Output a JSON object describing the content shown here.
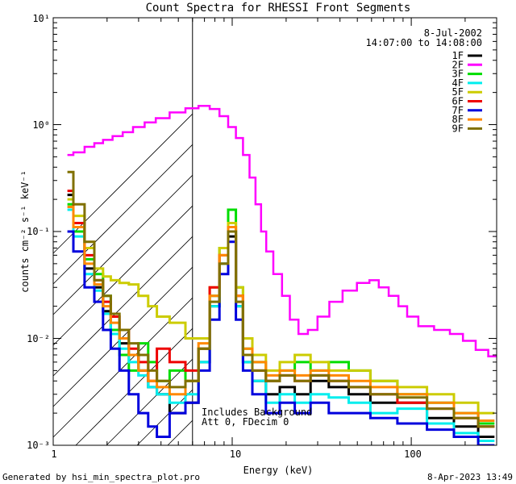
{
  "chart_data": {
    "type": "line",
    "title": "Count Spectra for RHESSI Front Segments",
    "xlabel": "Energy (keV)",
    "ylabel": "counts cm⁻² s⁻¹ keV⁻¹",
    "xscale": "log",
    "yscale": "log",
    "xlim": [
      1,
      300
    ],
    "ylim": [
      0.001,
      10
    ],
    "x_tick_labels": [
      "1",
      "10",
      "100"
    ],
    "y_tick_labels": [
      "10⁻³",
      "10⁻²",
      "10⁻¹",
      "10⁰",
      "10¹"
    ],
    "date_label": "8-Jul-2002",
    "time_range_label": "14:07:00 to 14:08:00",
    "annotation_lines": [
      "Includes Background",
      "Att 0, FDecim 0"
    ],
    "shaded_region_xlim": [
      1,
      6
    ],
    "legend_position": "top-right",
    "series": [
      {
        "name": "1F",
        "color": "#000000",
        "points": [
          [
            1.2,
            0.22
          ],
          [
            1.4,
            0.12
          ],
          [
            1.6,
            0.045
          ],
          [
            1.8,
            0.03
          ],
          [
            2.0,
            0.018
          ],
          [
            2.2,
            0.012
          ],
          [
            2.5,
            0.009
          ],
          [
            2.8,
            0.007
          ],
          [
            3.2,
            0.005
          ],
          [
            3.6,
            0.0035
          ],
          [
            4.0,
            0.003
          ],
          [
            5.0,
            0.002
          ],
          [
            6.0,
            0.0025
          ],
          [
            7.0,
            0.006
          ],
          [
            8.0,
            0.02
          ],
          [
            9.0,
            0.05
          ],
          [
            10.0,
            0.09
          ],
          [
            11.0,
            0.02
          ],
          [
            12.0,
            0.006
          ],
          [
            14.0,
            0.004
          ],
          [
            17.0,
            0.003
          ],
          [
            20.0,
            0.0035
          ],
          [
            25.0,
            0.003
          ],
          [
            30.0,
            0.004
          ],
          [
            40.0,
            0.0035
          ],
          [
            50.0,
            0.003
          ],
          [
            70.0,
            0.0025
          ],
          [
            100.0,
            0.0025
          ],
          [
            150.0,
            0.0018
          ],
          [
            200.0,
            0.0015
          ],
          [
            280.0,
            0.0012
          ]
        ]
      },
      {
        "name": "2F",
        "color": "#ff00ff",
        "points": [
          [
            1.2,
            0.52
          ],
          [
            1.4,
            0.55
          ],
          [
            1.6,
            0.62
          ],
          [
            1.8,
            0.67
          ],
          [
            2.0,
            0.72
          ],
          [
            2.3,
            0.78
          ],
          [
            2.6,
            0.85
          ],
          [
            3.0,
            0.95
          ],
          [
            3.5,
            1.05
          ],
          [
            4.0,
            1.15
          ],
          [
            5.0,
            1.3
          ],
          [
            6.0,
            1.42
          ],
          [
            7.0,
            1.5
          ],
          [
            8.0,
            1.4
          ],
          [
            9.0,
            1.2
          ],
          [
            10.0,
            0.95
          ],
          [
            11.0,
            0.75
          ],
          [
            12.0,
            0.52
          ],
          [
            13.0,
            0.32
          ],
          [
            14.0,
            0.18
          ],
          [
            15.0,
            0.1
          ],
          [
            16.0,
            0.065
          ],
          [
            18.0,
            0.04
          ],
          [
            20.0,
            0.025
          ],
          [
            22.0,
            0.015
          ],
          [
            25.0,
            0.011
          ],
          [
            28.0,
            0.012
          ],
          [
            32.0,
            0.016
          ],
          [
            38.0,
            0.022
          ],
          [
            45.0,
            0.028
          ],
          [
            55.0,
            0.033
          ],
          [
            62.0,
            0.035
          ],
          [
            70.0,
            0.03
          ],
          [
            80.0,
            0.025
          ],
          [
            90.0,
            0.02
          ],
          [
            100.0,
            0.016
          ],
          [
            120.0,
            0.013
          ],
          [
            150.0,
            0.012
          ],
          [
            180.0,
            0.011
          ],
          [
            210.0,
            0.0095
          ],
          [
            250.0,
            0.0078
          ],
          [
            290.0,
            0.0068
          ]
        ]
      },
      {
        "name": "3F",
        "color": "#00dd00",
        "points": [
          [
            1.2,
            0.18
          ],
          [
            1.4,
            0.1
          ],
          [
            1.6,
            0.055
          ],
          [
            1.8,
            0.04
          ],
          [
            2.0,
            0.025
          ],
          [
            2.2,
            0.012
          ],
          [
            2.5,
            0.007
          ],
          [
            2.8,
            0.005
          ],
          [
            3.2,
            0.009
          ],
          [
            3.6,
            0.006
          ],
          [
            4.0,
            0.004
          ],
          [
            5.0,
            0.005
          ],
          [
            6.0,
            0.004
          ],
          [
            7.0,
            0.008
          ],
          [
            8.0,
            0.025
          ],
          [
            9.0,
            0.07
          ],
          [
            10.0,
            0.16
          ],
          [
            11.0,
            0.03
          ],
          [
            12.0,
            0.008
          ],
          [
            14.0,
            0.006
          ],
          [
            17.0,
            0.004
          ],
          [
            20.0,
            0.005
          ],
          [
            25.0,
            0.006
          ],
          [
            30.0,
            0.005
          ],
          [
            40.0,
            0.006
          ],
          [
            50.0,
            0.005
          ],
          [
            70.0,
            0.004
          ],
          [
            100.0,
            0.003
          ],
          [
            150.0,
            0.0025
          ],
          [
            200.0,
            0.002
          ],
          [
            280.0,
            0.0016
          ]
        ]
      },
      {
        "name": "4F",
        "color": "#00eeee",
        "points": [
          [
            1.2,
            0.16
          ],
          [
            1.4,
            0.09
          ],
          [
            1.6,
            0.04
          ],
          [
            1.8,
            0.028
          ],
          [
            2.0,
            0.017
          ],
          [
            2.2,
            0.011
          ],
          [
            2.5,
            0.008
          ],
          [
            2.8,
            0.006
          ],
          [
            3.2,
            0.0045
          ],
          [
            3.6,
            0.0035
          ],
          [
            4.0,
            0.003
          ],
          [
            5.0,
            0.0025
          ],
          [
            6.0,
            0.003
          ],
          [
            7.0,
            0.006
          ],
          [
            8.0,
            0.02
          ],
          [
            9.0,
            0.05
          ],
          [
            10.0,
            0.1
          ],
          [
            11.0,
            0.02
          ],
          [
            12.0,
            0.006
          ],
          [
            14.0,
            0.004
          ],
          [
            17.0,
            0.0025
          ],
          [
            20.0,
            0.003
          ],
          [
            25.0,
            0.0025
          ],
          [
            30.0,
            0.003
          ],
          [
            40.0,
            0.0028
          ],
          [
            50.0,
            0.0025
          ],
          [
            70.0,
            0.002
          ],
          [
            100.0,
            0.0022
          ],
          [
            150.0,
            0.0016
          ],
          [
            200.0,
            0.0013
          ],
          [
            280.0,
            0.0011
          ]
        ]
      },
      {
        "name": "5F",
        "color": "#cccc00",
        "points": [
          [
            1.2,
            0.2
          ],
          [
            1.4,
            0.14
          ],
          [
            1.6,
            0.07
          ],
          [
            1.8,
            0.045
          ],
          [
            2.0,
            0.038
          ],
          [
            2.2,
            0.035
          ],
          [
            2.5,
            0.033
          ],
          [
            2.8,
            0.032
          ],
          [
            3.2,
            0.025
          ],
          [
            3.6,
            0.02
          ],
          [
            4.0,
            0.016
          ],
          [
            5.0,
            0.014
          ],
          [
            6.0,
            0.01
          ],
          [
            7.0,
            0.01
          ],
          [
            8.0,
            0.03
          ],
          [
            9.0,
            0.07
          ],
          [
            10.0,
            0.12
          ],
          [
            11.0,
            0.03
          ],
          [
            12.0,
            0.01
          ],
          [
            14.0,
            0.007
          ],
          [
            17.0,
            0.005
          ],
          [
            20.0,
            0.006
          ],
          [
            25.0,
            0.007
          ],
          [
            30.0,
            0.006
          ],
          [
            40.0,
            0.005
          ],
          [
            50.0,
            0.005
          ],
          [
            70.0,
            0.004
          ],
          [
            100.0,
            0.0035
          ],
          [
            150.0,
            0.003
          ],
          [
            200.0,
            0.0025
          ],
          [
            280.0,
            0.002
          ]
        ]
      },
      {
        "name": "6F",
        "color": "#ee0000",
        "points": [
          [
            1.2,
            0.24
          ],
          [
            1.4,
            0.12
          ],
          [
            1.6,
            0.06
          ],
          [
            1.8,
            0.035
          ],
          [
            2.0,
            0.022
          ],
          [
            2.2,
            0.016
          ],
          [
            2.5,
            0.012
          ],
          [
            2.8,
            0.008
          ],
          [
            3.2,
            0.006
          ],
          [
            3.6,
            0.004
          ],
          [
            4.0,
            0.008
          ],
          [
            5.0,
            0.006
          ],
          [
            6.0,
            0.005
          ],
          [
            7.0,
            0.008
          ],
          [
            8.0,
            0.03
          ],
          [
            9.0,
            0.06
          ],
          [
            10.0,
            0.1
          ],
          [
            11.0,
            0.025
          ],
          [
            12.0,
            0.007
          ],
          [
            14.0,
            0.005
          ],
          [
            17.0,
            0.004
          ],
          [
            20.0,
            0.0045
          ],
          [
            25.0,
            0.004
          ],
          [
            30.0,
            0.0045
          ],
          [
            40.0,
            0.004
          ],
          [
            50.0,
            0.0035
          ],
          [
            70.0,
            0.003
          ],
          [
            100.0,
            0.0025
          ],
          [
            150.0,
            0.0022
          ],
          [
            200.0,
            0.0018
          ],
          [
            280.0,
            0.0015
          ]
        ]
      },
      {
        "name": "7F",
        "color": "#0000dd",
        "points": [
          [
            1.2,
            0.1
          ],
          [
            1.4,
            0.065
          ],
          [
            1.6,
            0.03
          ],
          [
            1.8,
            0.022
          ],
          [
            2.0,
            0.012
          ],
          [
            2.2,
            0.008
          ],
          [
            2.5,
            0.005
          ],
          [
            2.8,
            0.003
          ],
          [
            3.2,
            0.002
          ],
          [
            3.6,
            0.0015
          ],
          [
            4.0,
            0.0012
          ],
          [
            5.0,
            0.002
          ],
          [
            6.0,
            0.0025
          ],
          [
            7.0,
            0.005
          ],
          [
            8.0,
            0.015
          ],
          [
            9.0,
            0.04
          ],
          [
            10.0,
            0.08
          ],
          [
            11.0,
            0.015
          ],
          [
            12.0,
            0.005
          ],
          [
            14.0,
            0.003
          ],
          [
            17.0,
            0.002
          ],
          [
            20.0,
            0.0025
          ],
          [
            25.0,
            0.002
          ],
          [
            30.0,
            0.0025
          ],
          [
            40.0,
            0.002
          ],
          [
            50.0,
            0.002
          ],
          [
            70.0,
            0.0018
          ],
          [
            100.0,
            0.0016
          ],
          [
            150.0,
            0.0014
          ],
          [
            200.0,
            0.0012
          ],
          [
            280.0,
            0.001
          ]
        ]
      },
      {
        "name": "8F",
        "color": "#ff8800",
        "points": [
          [
            1.2,
            0.17
          ],
          [
            1.4,
            0.11
          ],
          [
            1.6,
            0.05
          ],
          [
            1.8,
            0.032
          ],
          [
            2.0,
            0.02
          ],
          [
            2.2,
            0.014
          ],
          [
            2.5,
            0.01
          ],
          [
            2.8,
            0.007
          ],
          [
            3.2,
            0.005
          ],
          [
            3.6,
            0.004
          ],
          [
            4.0,
            0.0035
          ],
          [
            5.0,
            0.003
          ],
          [
            6.0,
            0.004
          ],
          [
            7.0,
            0.009
          ],
          [
            8.0,
            0.025
          ],
          [
            9.0,
            0.06
          ],
          [
            10.0,
            0.11
          ],
          [
            11.0,
            0.025
          ],
          [
            12.0,
            0.008
          ],
          [
            14.0,
            0.006
          ],
          [
            17.0,
            0.0045
          ],
          [
            20.0,
            0.005
          ],
          [
            25.0,
            0.0045
          ],
          [
            30.0,
            0.005
          ],
          [
            40.0,
            0.0045
          ],
          [
            50.0,
            0.004
          ],
          [
            70.0,
            0.0035
          ],
          [
            100.0,
            0.003
          ],
          [
            150.0,
            0.0025
          ],
          [
            200.0,
            0.002
          ],
          [
            280.0,
            0.0017
          ]
        ]
      },
      {
        "name": "9F",
        "color": "#807000",
        "points": [
          [
            1.2,
            0.36
          ],
          [
            1.4,
            0.18
          ],
          [
            1.6,
            0.08
          ],
          [
            1.8,
            0.035
          ],
          [
            2.0,
            0.025
          ],
          [
            2.2,
            0.017
          ],
          [
            2.5,
            0.012
          ],
          [
            2.8,
            0.009
          ],
          [
            3.2,
            0.007
          ],
          [
            3.6,
            0.005
          ],
          [
            4.0,
            0.004
          ],
          [
            5.0,
            0.0035
          ],
          [
            6.0,
            0.004
          ],
          [
            7.0,
            0.008
          ],
          [
            8.0,
            0.022
          ],
          [
            9.0,
            0.05
          ],
          [
            10.0,
            0.1
          ],
          [
            11.0,
            0.022
          ],
          [
            12.0,
            0.007
          ],
          [
            14.0,
            0.005
          ],
          [
            17.0,
            0.004
          ],
          [
            20.0,
            0.0045
          ],
          [
            25.0,
            0.004
          ],
          [
            30.0,
            0.0045
          ],
          [
            40.0,
            0.004
          ],
          [
            50.0,
            0.0035
          ],
          [
            70.0,
            0.003
          ],
          [
            100.0,
            0.0028
          ],
          [
            150.0,
            0.0022
          ],
          [
            200.0,
            0.0018
          ],
          [
            280.0,
            0.0015
          ]
        ]
      }
    ]
  },
  "footer": {
    "generated_by": "Generated by hsi_min_spectra_plot.pro",
    "timestamp": "8-Apr-2023 13:49"
  }
}
